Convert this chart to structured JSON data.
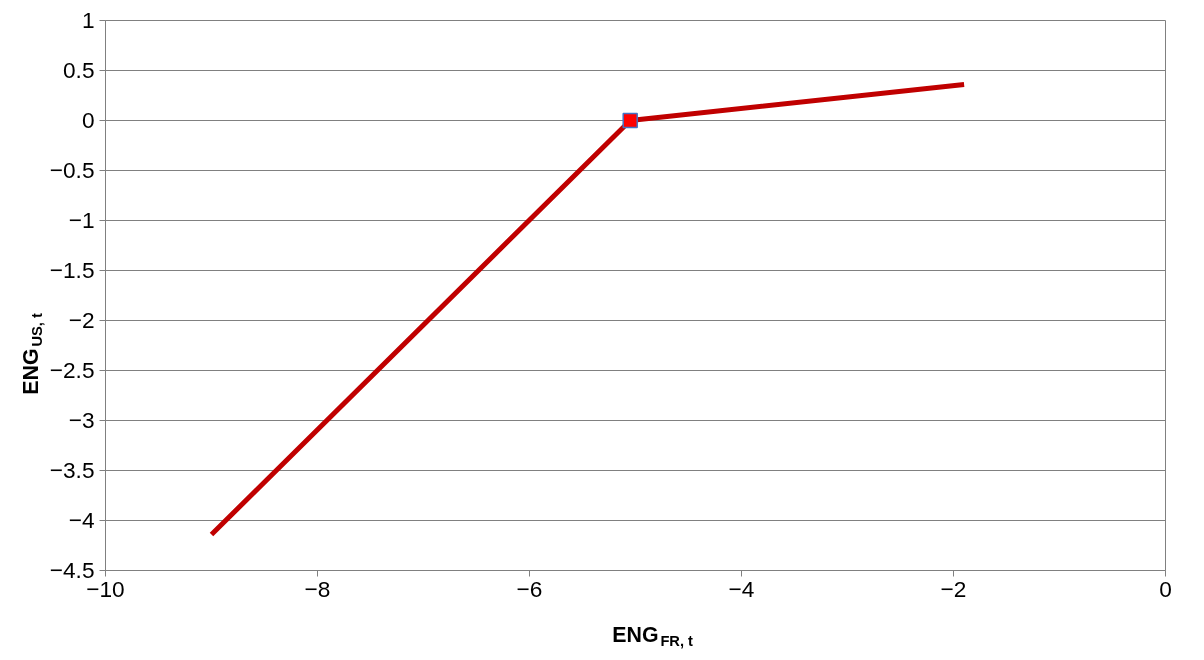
{
  "chart_data": {
    "type": "line",
    "xlabel": "ENG$_{FR, t}$",
    "ylabel": "ENG$_{US, t}$",
    "xlim": [
      -10,
      0
    ],
    "xticks": [
      -10,
      -8,
      -6,
      -4,
      -2,
      0
    ],
    "ylim": [
      -4.5,
      1
    ],
    "yticks": [
      -4.5,
      -4,
      -3.5,
      -3,
      -2.5,
      -2,
      -1.5,
      -1,
      -0.5,
      0,
      0.5,
      1
    ],
    "grid": "y",
    "series": [
      {
        "color": "#c00000",
        "x": [
          -9,
          -5.05,
          -1.9
        ],
        "values": [
          -4.14,
          0,
          0.36
        ],
        "marker": "none"
      },
      {
        "type": "scatter",
        "color": "#ff0000",
        "x": [
          -5.05
        ],
        "values": [
          0
        ],
        "marker": "square"
      }
    ]
  }
}
